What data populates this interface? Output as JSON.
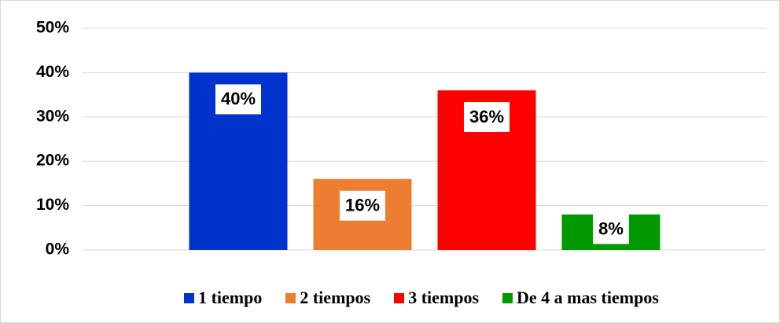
{
  "chart_data": {
    "type": "bar",
    "categories": [
      null
    ],
    "series": [
      {
        "name": "1 tiempo",
        "color": "#0033cc",
        "values": [
          40
        ],
        "value_labels": [
          "40%"
        ]
      },
      {
        "name": "2 tiempos",
        "color": "#ed7d31",
        "values": [
          16
        ],
        "value_labels": [
          "16%"
        ]
      },
      {
        "name": "3 tiempos",
        "color": "#ff0000",
        "values": [
          36
        ],
        "value_labels": [
          "36%"
        ]
      },
      {
        "name": "De 4 a mas tiempos",
        "color": "#009900",
        "values": [
          8
        ],
        "value_labels": [
          "8%"
        ]
      }
    ],
    "ylim": [
      0,
      50
    ],
    "yticks": [
      {
        "value": 0,
        "label": "0%"
      },
      {
        "value": 10,
        "label": "10%"
      },
      {
        "value": 20,
        "label": "20%"
      },
      {
        "value": 30,
        "label": "30%"
      },
      {
        "value": 40,
        "label": "40%"
      },
      {
        "value": 50,
        "label": "50%"
      }
    ],
    "grid": true,
    "legend": "bottom"
  }
}
